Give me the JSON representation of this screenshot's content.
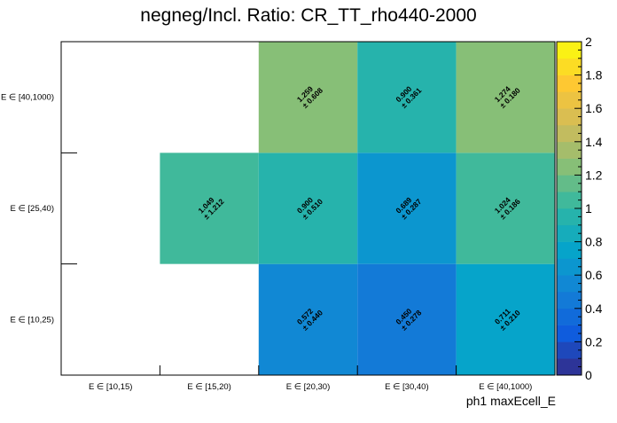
{
  "chart_data": {
    "type": "heatmap",
    "title": "negneg/Incl. Ratio: CR_TT_rho440-2000",
    "xlabel": "ph1 maxEcell_E",
    "ylabel": "",
    "x_categories": [
      "E ∈ [10,15)",
      "E ∈ [15,20)",
      "E ∈ [20,30)",
      "E ∈ [30,40)",
      "E ∈ [40,1000)"
    ],
    "y_categories": [
      "E ∈ [10,25)",
      "E ∈ [25,40)",
      "E ∈ [40,1000)"
    ],
    "cells": [
      {
        "x": 2,
        "y": 0,
        "value": 0.572,
        "error": 0.44
      },
      {
        "x": 3,
        "y": 0,
        "value": 0.45,
        "error": 0.278
      },
      {
        "x": 4,
        "y": 0,
        "value": 0.711,
        "error": 0.21
      },
      {
        "x": 1,
        "y": 1,
        "value": 1.049,
        "error": 1.212
      },
      {
        "x": 2,
        "y": 1,
        "value": 0.9,
        "error": 0.51
      },
      {
        "x": 3,
        "y": 1,
        "value": 0.689,
        "error": 0.287
      },
      {
        "x": 4,
        "y": 1,
        "value": 1.024,
        "error": 0.186
      },
      {
        "x": 2,
        "y": 2,
        "value": 1.259,
        "error": 0.608
      },
      {
        "x": 3,
        "y": 2,
        "value": 0.9,
        "error": 0.361
      },
      {
        "x": 4,
        "y": 2,
        "value": 1.274,
        "error": 0.18
      }
    ],
    "value_labels": {
      "0.572": "0.572",
      "0.450": "0.450",
      "0.711": "0.711",
      "1.049": "1.049",
      "0.900": "0.900",
      "0.689": "0.689",
      "1.024": "1.024",
      "1.259": "1.259",
      "1.274": "1.274"
    },
    "error_labels": [
      "± 0.440",
      "± 0.278",
      "± 0.210",
      "± 1.212",
      "± 0.510",
      "± 0.287",
      "± 0.186",
      "± 0.608",
      "± 0.361",
      "± 0.180"
    ],
    "zlim": [
      0,
      2
    ],
    "colorbar_ticks": [
      "0",
      "0.2",
      "0.4",
      "0.6",
      "0.8",
      "1",
      "1.2",
      "1.4",
      "1.6",
      "1.8",
      "2"
    ],
    "colormap_stops": [
      "#352a87",
      "#0f5cdd",
      "#1481d6",
      "#06a4ca",
      "#2eb7a4",
      "#87bf77",
      "#d1bb59",
      "#fec832",
      "#f9fb0e"
    ],
    "grid": false
  }
}
